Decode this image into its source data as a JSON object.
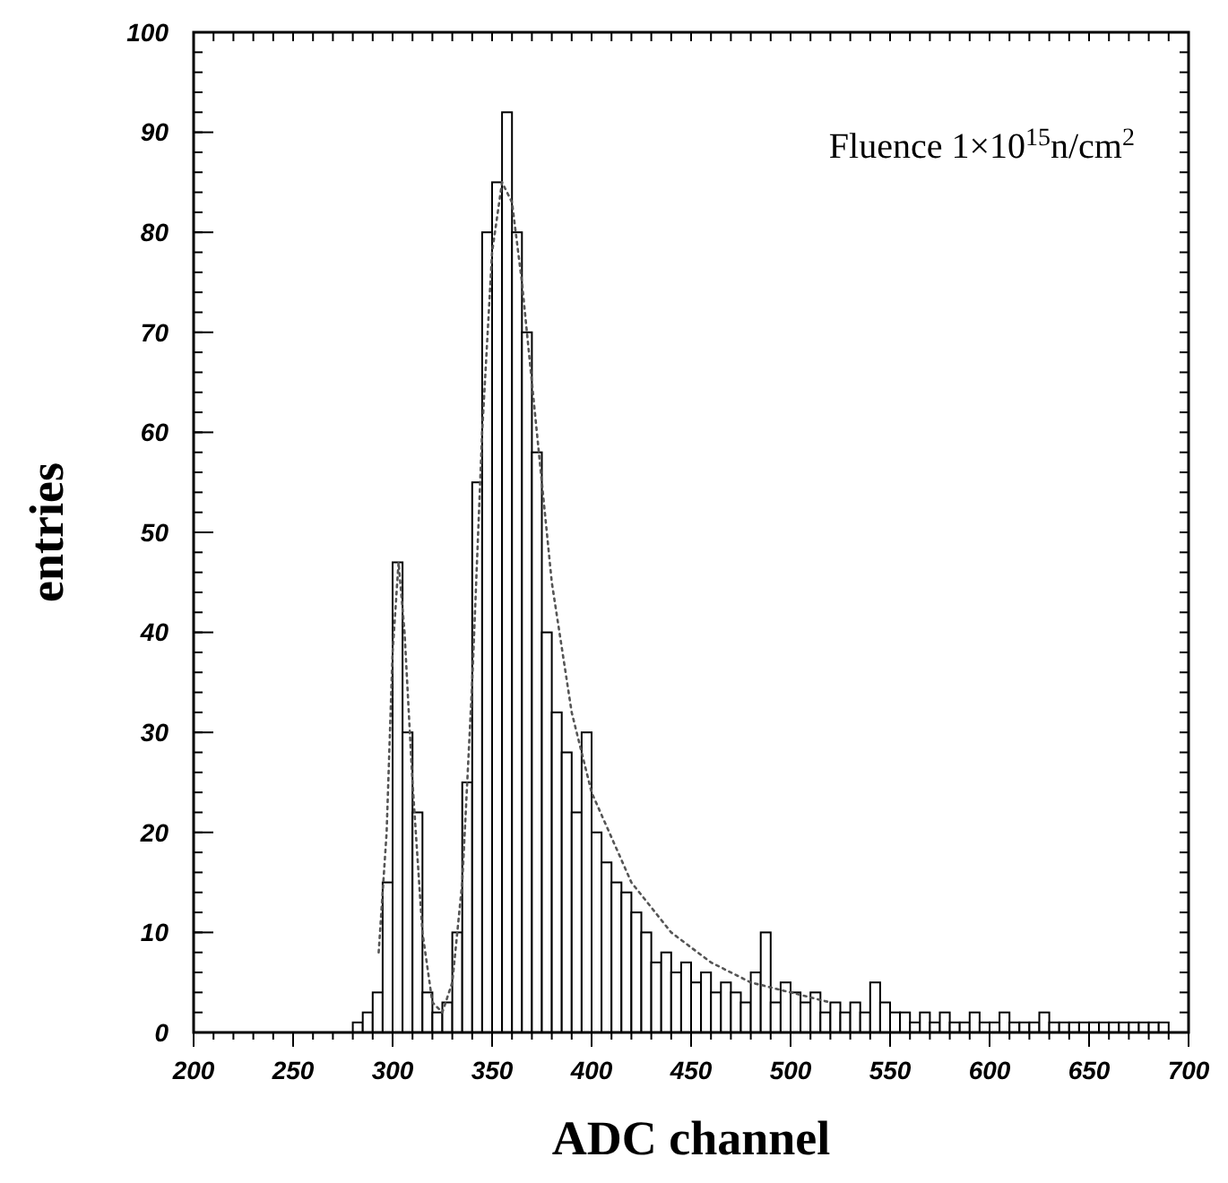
{
  "chart_data": {
    "type": "histogram",
    "xlabel": "ADC channel",
    "ylabel": "entries",
    "annotations": [
      "Fluence 1×10$^{15}$n/cm$^{2}$"
    ],
    "xlim": [
      200,
      700
    ],
    "ylim": [
      0,
      100
    ],
    "xticks": [
      200,
      250,
      300,
      350,
      400,
      450,
      500,
      550,
      600,
      650,
      700
    ],
    "yticks": [
      0,
      10,
      20,
      30,
      40,
      50,
      60,
      70,
      80,
      90,
      100
    ],
    "bins": [
      280,
      285,
      290,
      295,
      300,
      305,
      310,
      315,
      320,
      325,
      330,
      335,
      340,
      345,
      350,
      355,
      360,
      365,
      370,
      375,
      380,
      385,
      390,
      395,
      400,
      405,
      410,
      415,
      420,
      425,
      430,
      435,
      440,
      445,
      450,
      455,
      460,
      465,
      470,
      475,
      480,
      485,
      490,
      495,
      500,
      505,
      510,
      515,
      520,
      525,
      530,
      535,
      540,
      545,
      550,
      555,
      560,
      565,
      570,
      575,
      580,
      585,
      590,
      595,
      600,
      605,
      610,
      615,
      620,
      625,
      630,
      635,
      640,
      645,
      650,
      655,
      660,
      665,
      670,
      675,
      680,
      685,
      690
    ],
    "series": [
      {
        "color": "#000000",
        "values": [
          1,
          2,
          4,
          15,
          47,
          30,
          22,
          4,
          2,
          3,
          10,
          25,
          55,
          80,
          85,
          92,
          80,
          70,
          58,
          40,
          32,
          28,
          22,
          30,
          20,
          17,
          15,
          14,
          12,
          10,
          7,
          8,
          6,
          7,
          5,
          6,
          4,
          5,
          4,
          3,
          6,
          10,
          3,
          5,
          4,
          3,
          4,
          2,
          3,
          2,
          3,
          2,
          5,
          3,
          2,
          2,
          1,
          2,
          1,
          2,
          1,
          1,
          2,
          1,
          1,
          2,
          1,
          1,
          1,
          2,
          1,
          1,
          1,
          1,
          1,
          1,
          1,
          1,
          1,
          1,
          1,
          1
        ]
      },
      {
        "type": "line",
        "color": "#555555",
        "line_style": "dotted",
        "x": [
          293,
          297,
          300,
          303,
          306,
          310,
          315,
          320,
          325,
          330,
          335,
          340,
          345,
          350,
          355,
          360,
          365,
          370,
          375,
          380,
          390,
          400,
          420,
          440,
          460,
          480,
          500,
          520
        ],
        "values": [
          8,
          20,
          38,
          47,
          40,
          25,
          10,
          3,
          2,
          5,
          15,
          35,
          60,
          78,
          85,
          83,
          75,
          65,
          55,
          45,
          32,
          24,
          15,
          10,
          7,
          5,
          4,
          3
        ]
      }
    ],
    "grid": false
  }
}
